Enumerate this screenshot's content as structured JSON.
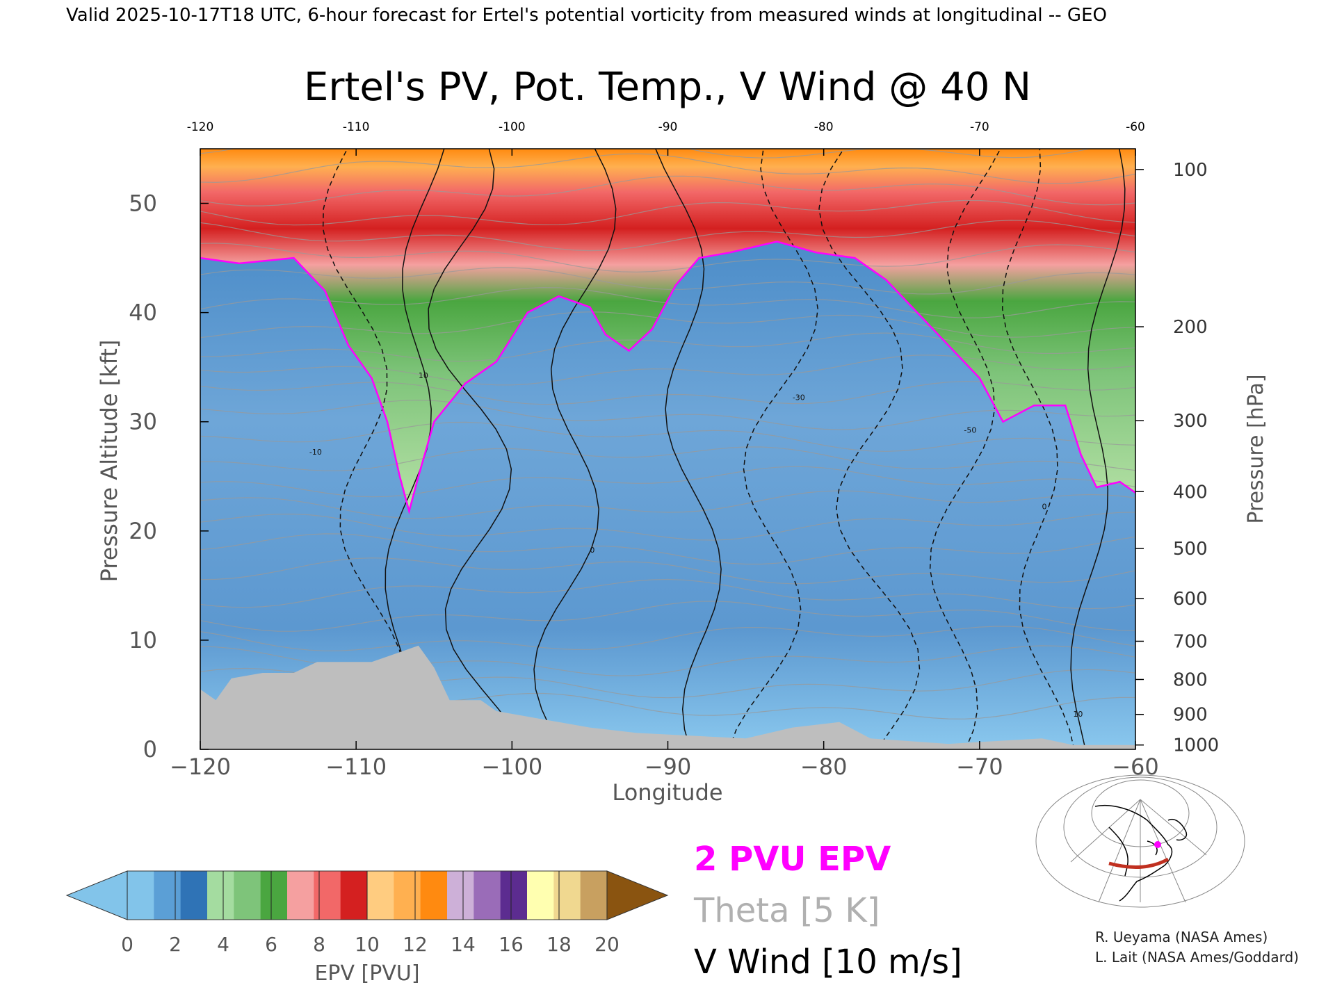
{
  "header": {
    "valid_line": "Valid 2025-10-17T18 UTC, 6-hour forecast for Ertel's potential vorticity from measured winds at longitudinal -- GEO"
  },
  "chart_data": {
    "type": "heatmap",
    "title": "Ertel's PV, Pot. Temp., V Wind @ 40 N",
    "xlabel": "Longitude",
    "ylabel_left": "Pressure Altitude [kft]",
    "ylabel_right": "Pressure [hPa]",
    "xlim": [
      -120,
      -60
    ],
    "ylim": [
      0,
      55
    ],
    "x_ticks": [
      -120,
      -110,
      -100,
      -90,
      -80,
      -70,
      -60
    ],
    "x_tick_labels": [
      "−120",
      "−110",
      "−100",
      "−90",
      "−80",
      "−70",
      "−60"
    ],
    "x_top_tick_labels": [
      "-120",
      "-110",
      "-100",
      "-90",
      "-80",
      "-70",
      "-60"
    ],
    "y_ticks": [
      0,
      10,
      20,
      30,
      40,
      50
    ],
    "y_tick_labels": [
      "0",
      "10",
      "20",
      "30",
      "40",
      "50"
    ],
    "pressure_levels": [
      {
        "hpa": 100,
        "kft": 53.1
      },
      {
        "hpa": 200,
        "kft": 38.7
      },
      {
        "hpa": 300,
        "kft": 30.1
      },
      {
        "hpa": 400,
        "kft": 23.6
      },
      {
        "hpa": 500,
        "kft": 18.4
      },
      {
        "hpa": 600,
        "kft": 13.8
      },
      {
        "hpa": 700,
        "kft": 9.9
      },
      {
        "hpa": 800,
        "kft": 6.4
      },
      {
        "hpa": 900,
        "kft": 3.2
      },
      {
        "hpa": 1000,
        "kft": 0.4
      }
    ],
    "pv_2pvu_boundary": [
      [
        -120,
        45.0
      ],
      [
        -117.5,
        44.5
      ],
      [
        -114,
        45.0
      ],
      [
        -112,
        42.0
      ],
      [
        -110.5,
        37.0
      ],
      [
        -109,
        34.0
      ],
      [
        -108,
        30.0
      ],
      [
        -107.2,
        25.0
      ],
      [
        -106.6,
        21.8
      ],
      [
        -106,
        25.0
      ],
      [
        -105,
        30.0
      ],
      [
        -103,
        33.5
      ],
      [
        -101,
        35.5
      ],
      [
        -99,
        40.0
      ],
      [
        -97,
        41.5
      ],
      [
        -95,
        40.5
      ],
      [
        -94,
        38.0
      ],
      [
        -92.5,
        36.5
      ],
      [
        -91,
        38.5
      ],
      [
        -89.5,
        42.5
      ],
      [
        -88,
        45.0
      ],
      [
        -86,
        45.5
      ],
      [
        -83,
        46.5
      ],
      [
        -80.5,
        45.5
      ],
      [
        -78,
        45.0
      ],
      [
        -76,
        43.0
      ],
      [
        -74,
        40.0
      ],
      [
        -72,
        37.0
      ],
      [
        -70,
        34.0
      ],
      [
        -68.5,
        30.0
      ],
      [
        -66.5,
        31.5
      ],
      [
        -64.5,
        31.5
      ],
      [
        -63.5,
        27.0
      ],
      [
        -62.5,
        24.0
      ],
      [
        -61,
        24.5
      ],
      [
        -60,
        23.5
      ]
    ],
    "terrain_profile": [
      [
        -120,
        5.5
      ],
      [
        -119,
        4.5
      ],
      [
        -118,
        6.5
      ],
      [
        -116,
        7.0
      ],
      [
        -114,
        7.0
      ],
      [
        -112.5,
        8.0
      ],
      [
        -109,
        8.0
      ],
      [
        -108,
        8.5
      ],
      [
        -106,
        9.5
      ],
      [
        -105,
        7.5
      ],
      [
        -104,
        4.5
      ],
      [
        -102,
        4.5
      ],
      [
        -101,
        3.5
      ],
      [
        -99,
        3.0
      ],
      [
        -97,
        2.5
      ],
      [
        -95,
        2.0
      ],
      [
        -92,
        1.5
      ],
      [
        -85,
        1.0
      ],
      [
        -82,
        2.0
      ],
      [
        -79,
        2.5
      ],
      [
        -77,
        1.0
      ],
      [
        -72,
        0.5
      ],
      [
        -66,
        1.0
      ],
      [
        -64,
        0.4
      ],
      [
        -60,
        0.4
      ]
    ],
    "vwind_labels": [
      "-10",
      "10",
      "0",
      "-30",
      "-50",
      "0",
      "10"
    ],
    "legend": {
      "epv_label": "2 PVU EPV",
      "theta_label": "Theta [5 K]",
      "vwind_label": "V Wind [10 m/s]"
    },
    "legend_placement": "bottom",
    "colorbar": {
      "label": "EPV [PVU]",
      "ticks": [
        "0",
        "2",
        "4",
        "6",
        "8",
        "10",
        "12",
        "14",
        "16",
        "18",
        "20"
      ],
      "colors": [
        "#82c4ea",
        "#5b9fd6",
        "#2f73b6",
        "#a4dca0",
        "#7ec47a",
        "#4aa640",
        "#f5a0a0",
        "#f26868",
        "#d42020",
        "#ffcc80",
        "#ffb050",
        "#ff8a10",
        "#cdb0d8",
        "#9a6cb8",
        "#5c2c90",
        "#ffffb0",
        "#f0d890",
        "#c8a060"
      ],
      "min_extend_color": "#82c4ea",
      "max_extend_color": "#8a5410"
    },
    "inset_map": {
      "track_color": "#c03020",
      "marker_color": "#ff00ff"
    }
  },
  "credits": {
    "line1": "R. Ueyama (NASA Ames)",
    "line2": "L. Lait (NASA Ames/Goddard)"
  }
}
